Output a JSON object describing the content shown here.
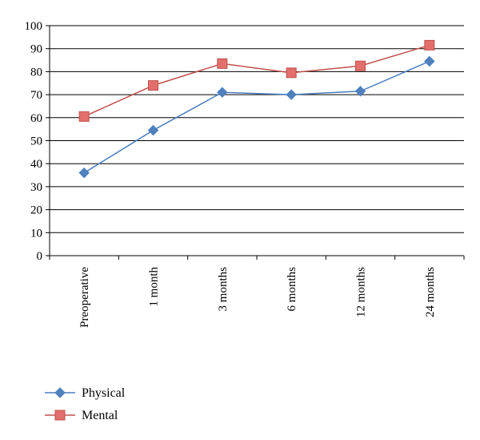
{
  "chart_data": {
    "type": "line",
    "categories": [
      "Preoperative",
      "1 month",
      "3 months",
      "6 months",
      "12 months",
      "24 months"
    ],
    "series": [
      {
        "name": "Physical",
        "values": [
          36,
          54.5,
          71,
          70,
          71.5,
          84.5
        ],
        "color": "#4a7ebf",
        "marker_color": "#4f81bd",
        "marker": "diamond"
      },
      {
        "name": "Mental",
        "values": [
          60.5,
          74,
          83.5,
          79.5,
          82.5,
          91.5
        ],
        "color": "#c0504d",
        "marker_color": "#e26f6b",
        "marker": "square"
      }
    ],
    "title": "",
    "xlabel": "",
    "ylabel": "",
    "ylim": [
      0,
      100
    ],
    "yticks": [
      "0",
      "10",
      "20",
      "30",
      "40",
      "50",
      "60",
      "70",
      "80",
      "90",
      "100"
    ],
    "grid": "horizontal",
    "legend": "bottom-left"
  }
}
